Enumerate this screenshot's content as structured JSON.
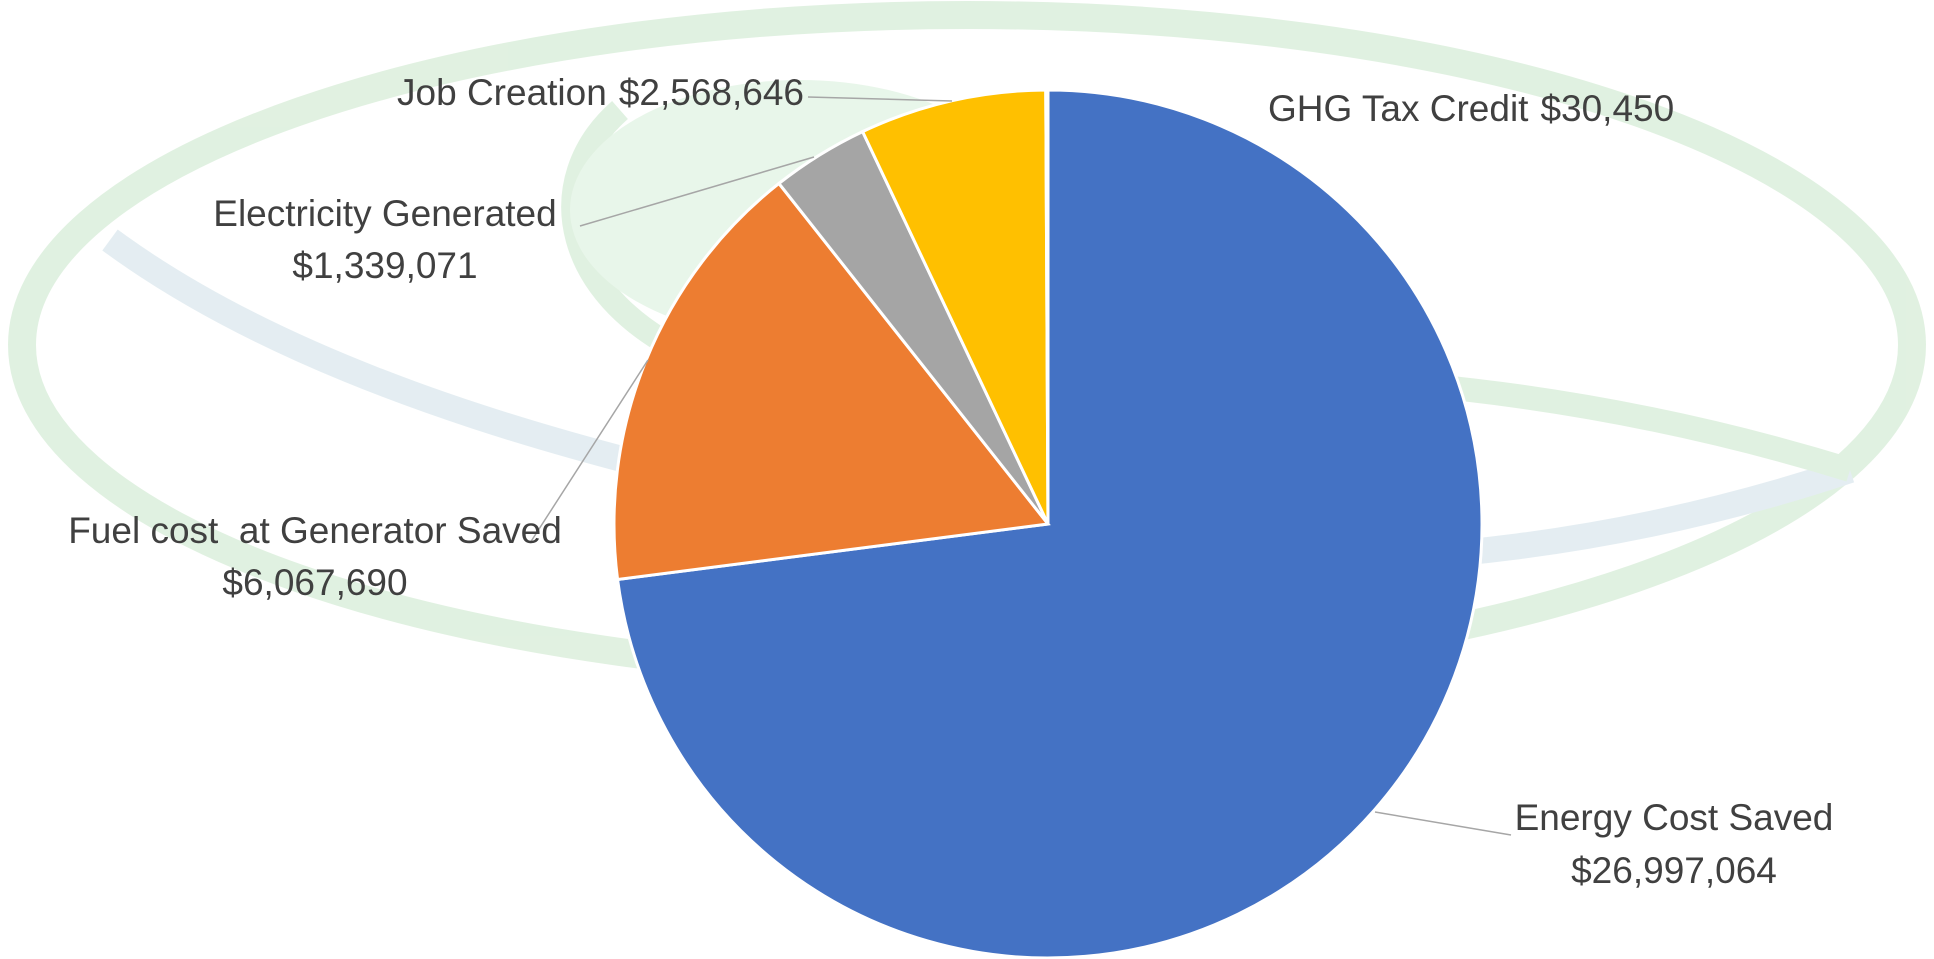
{
  "chart_data": {
    "type": "pie",
    "categories": [
      "Energy Cost Saved",
      "Fuel cost  at Generator Saved",
      "Electricity Generated",
      "Job Creation",
      "GHG Tax Credit"
    ],
    "values": [
      26997064,
      6067690,
      1339071,
      2568646,
      30450
    ],
    "value_labels": [
      "$26,997,064",
      "$6,067,690",
      "$1,339,071",
      "$2,568,646",
      "$30,450"
    ],
    "colors": [
      "#4472c4",
      "#ed7d31",
      "#a5a5a5",
      "#ffc000",
      "#5b9bd5"
    ]
  }
}
